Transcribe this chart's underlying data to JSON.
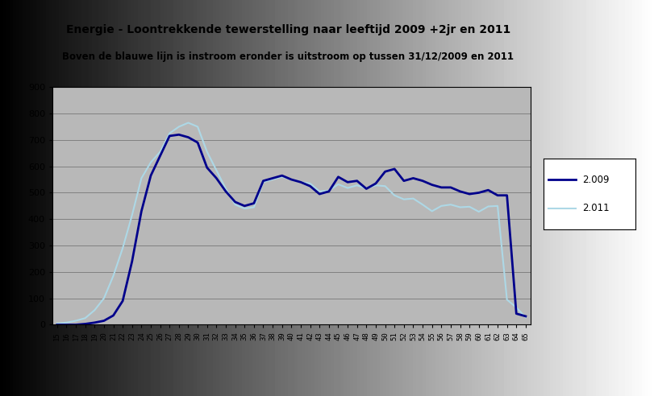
{
  "title1": "Energie - Loontrekkende tewerstelling naar leeftijd 2009 +2jr en 2011",
  "title2": "Boven de blauwe lijn is instroom eronder is uitstroom op tussen 31/12/2009 en 2011",
  "series_2009_label": "2.009",
  "series_2011_label": "2.011",
  "color_2009": "#00008B",
  "color_2011": "#ADD8E6",
  "plot_bg": "#B8B8B8",
  "fig_bg_left": "#C8C8C8",
  "fig_bg_right": "#E8E8E8",
  "ylim": [
    0,
    900
  ],
  "yticks": [
    0,
    100,
    200,
    300,
    400,
    500,
    600,
    700,
    800,
    900
  ],
  "ages": [
    15,
    16,
    17,
    18,
    19,
    20,
    21,
    22,
    23,
    24,
    25,
    26,
    27,
    28,
    29,
    30,
    31,
    32,
    33,
    34,
    35,
    36,
    37,
    38,
    39,
    40,
    41,
    42,
    43,
    44,
    45,
    46,
    47,
    48,
    49,
    50,
    51,
    52,
    53,
    54,
    55,
    56,
    57,
    58,
    59,
    60,
    61,
    62,
    63,
    64,
    65
  ],
  "values_2009": [
    0,
    0,
    0,
    3,
    8,
    15,
    35,
    90,
    240,
    430,
    565,
    640,
    715,
    720,
    710,
    690,
    595,
    555,
    505,
    465,
    450,
    460,
    545,
    555,
    565,
    550,
    540,
    525,
    495,
    505,
    560,
    540,
    545,
    515,
    535,
    580,
    590,
    545,
    555,
    545,
    530,
    520,
    520,
    505,
    495,
    500,
    510,
    490,
    490,
    42,
    32
  ],
  "values_2011": [
    5,
    8,
    15,
    25,
    55,
    100,
    185,
    290,
    415,
    555,
    615,
    655,
    725,
    750,
    765,
    750,
    655,
    585,
    515,
    455,
    440,
    445,
    540,
    550,
    560,
    550,
    540,
    535,
    505,
    508,
    532,
    518,
    528,
    516,
    528,
    525,
    490,
    475,
    478,
    455,
    430,
    450,
    455,
    445,
    447,
    428,
    448,
    450,
    95,
    65,
    28
  ]
}
